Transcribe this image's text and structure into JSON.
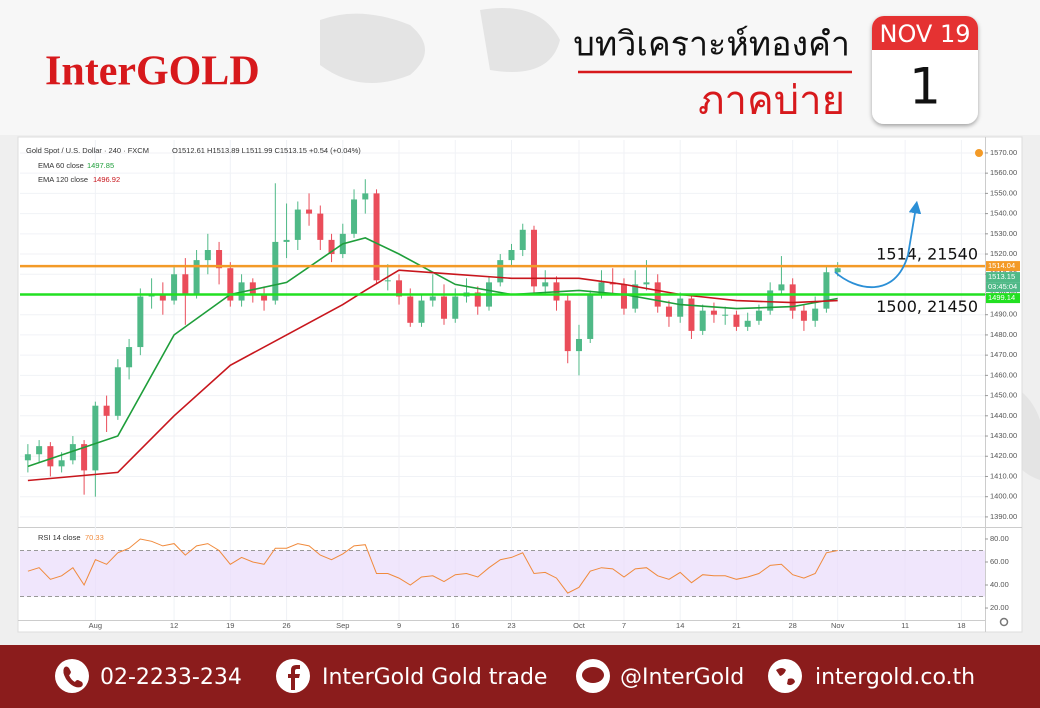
{
  "header": {
    "logo": "InterGOLD",
    "title": "บทวิเคราะห์ทองคำ",
    "subtitle": "ภาคบ่าย",
    "calendar": {
      "month": "NOV 19",
      "day": "1"
    }
  },
  "footer": {
    "phone": "02-2233-234",
    "facebook": "InterGold Gold trade",
    "line": "@InterGold",
    "website": "intergold.co.th"
  },
  "chart_data": [
    {
      "type": "candlestick",
      "title": "Gold Spot / U.S. Dollar · 240 · FXCM",
      "ohlc_label": "O1512.61 H1513.89 L1511.99 C1513.15 +0.54 (+0.04%)",
      "up_color": "#4fb987",
      "down_color": "#ea4d5a",
      "xlim": [
        -6.7,
        79.1
      ],
      "xticks": [
        {
          "value": 0,
          "label": "Aug"
        },
        {
          "value": 7,
          "label": "12"
        },
        {
          "value": 12,
          "label": "19"
        },
        {
          "value": 17,
          "label": "26"
        },
        {
          "value": 22,
          "label": "Sep"
        },
        {
          "value": 27,
          "label": "9"
        },
        {
          "value": 32,
          "label": "16"
        },
        {
          "value": 37,
          "label": "23"
        },
        {
          "value": 43,
          "label": "Oct"
        },
        {
          "value": 47,
          "label": "7"
        },
        {
          "value": 52,
          "label": "14"
        },
        {
          "value": 57,
          "label": "21"
        },
        {
          "value": 62,
          "label": "28"
        },
        {
          "value": 66,
          "label": "Nov"
        },
        {
          "value": 72,
          "label": "11"
        },
        {
          "value": 77,
          "label": "18"
        }
      ],
      "ylim": [
        1386,
        1576.4
      ],
      "yticks": [
        {
          "value": 1390,
          "label": "1390.00"
        },
        {
          "value": 1400,
          "label": "1400.00"
        },
        {
          "value": 1410,
          "label": "1410.00"
        },
        {
          "value": 1420,
          "label": "1420.00"
        },
        {
          "value": 1430,
          "label": "1430.00"
        },
        {
          "value": 1440,
          "label": "1440.00"
        },
        {
          "value": 1450,
          "label": "1450.00"
        },
        {
          "value": 1460,
          "label": "1460.00"
        },
        {
          "value": 1470,
          "label": "1470.00"
        },
        {
          "value": 1480,
          "label": "1480.00"
        },
        {
          "value": 1490,
          "label": "1490.00"
        },
        {
          "value": 1500,
          "label": "1500.00"
        },
        {
          "value": 1510,
          "label": "1510.00"
        },
        {
          "value": 1520,
          "label": "1520.00"
        },
        {
          "value": 1530,
          "label": "1530.00"
        },
        {
          "value": 1540,
          "label": "1540.00"
        },
        {
          "value": 1550,
          "label": "1550.00"
        },
        {
          "value": 1560,
          "label": "1560.00"
        },
        {
          "value": 1570,
          "label": "1570.00"
        }
      ],
      "grid": true,
      "x": [
        -6,
        -5,
        -4,
        -3,
        -2,
        -1,
        0,
        1,
        2,
        3,
        4,
        5,
        6,
        7,
        8,
        9,
        10,
        11,
        12,
        13,
        14,
        15,
        16,
        17,
        18,
        19,
        20,
        21,
        22,
        23,
        24,
        25,
        26,
        27,
        28,
        29,
        30,
        31,
        32,
        33,
        34,
        35,
        36,
        37,
        38,
        39,
        40,
        41,
        42,
        43,
        44,
        45,
        46,
        47,
        48,
        49,
        50,
        51,
        52,
        53,
        54,
        55,
        56,
        57,
        58,
        59,
        60,
        61,
        62,
        63,
        64,
        65,
        66
      ],
      "open": [
        1418,
        1421,
        1425,
        1415,
        1418,
        1426,
        1413,
        1445,
        1440,
        1464,
        1474,
        1499,
        1500,
        1497,
        1510,
        1500,
        1517,
        1522,
        1513,
        1497,
        1506,
        1500,
        1497,
        1526,
        1527,
        1542,
        1540,
        1527,
        1520,
        1530,
        1547,
        1550,
        1507,
        1507,
        1499,
        1486,
        1497,
        1499,
        1488,
        1499,
        1501,
        1494,
        1506,
        1517,
        1522,
        1532,
        1504,
        1506,
        1497,
        1472,
        1478,
        1500,
        1506,
        1505,
        1493,
        1505,
        1506,
        1494,
        1489,
        1498,
        1482,
        1492,
        1490,
        1490,
        1484,
        1487,
        1492,
        1502,
        1505,
        1492,
        1487,
        1493,
        1511
      ],
      "high": [
        1426,
        1428,
        1427,
        1422,
        1430,
        1428,
        1447,
        1450,
        1468,
        1478,
        1503,
        1508,
        1506,
        1514,
        1518,
        1522,
        1530,
        1526,
        1516,
        1510,
        1508,
        1504,
        1555,
        1545,
        1546,
        1550,
        1544,
        1530,
        1535,
        1552,
        1557,
        1552,
        1515,
        1510,
        1503,
        1500,
        1510,
        1505,
        1503,
        1508,
        1504,
        1509,
        1520,
        1525,
        1535,
        1534,
        1512,
        1509,
        1500,
        1485,
        1502,
        1512,
        1513,
        1508,
        1512,
        1517,
        1510,
        1497,
        1501,
        1500,
        1495,
        1496,
        1494,
        1492,
        1491,
        1495,
        1506,
        1519,
        1508,
        1495,
        1499,
        1514,
        1516
      ],
      "low": [
        1412,
        1417,
        1410,
        1412,
        1416,
        1401,
        1400,
        1432,
        1438,
        1458,
        1470,
        1493,
        1490,
        1495,
        1485,
        1498,
        1510,
        1505,
        1494,
        1494,
        1496,
        1492,
        1495,
        1518,
        1522,
        1534,
        1522,
        1516,
        1518,
        1528,
        1540,
        1505,
        1502,
        1495,
        1484,
        1484,
        1494,
        1485,
        1486,
        1496,
        1490,
        1492,
        1504,
        1514,
        1519,
        1501,
        1500,
        1492,
        1466,
        1460,
        1476,
        1498,
        1500,
        1490,
        1491,
        1502,
        1491,
        1484,
        1486,
        1478,
        1480,
        1486,
        1485,
        1482,
        1482,
        1485,
        1490,
        1500,
        1488,
        1482,
        1484,
        1491,
        1509
      ],
      "close": [
        1421,
        1425,
        1415,
        1418,
        1426,
        1413,
        1445,
        1440,
        1464,
        1474,
        1499,
        1500,
        1497,
        1510,
        1500,
        1517,
        1522,
        1513,
        1497,
        1506,
        1500,
        1497,
        1526,
        1527,
        1542,
        1540,
        1527,
        1520,
        1530,
        1547,
        1550,
        1507,
        1507,
        1499,
        1486,
        1497,
        1499,
        1488,
        1499,
        1501,
        1494,
        1506,
        1517,
        1522,
        1532,
        1504,
        1506,
        1497,
        1472,
        1478,
        1500,
        1506,
        1505,
        1493,
        1505,
        1506,
        1494,
        1489,
        1498,
        1482,
        1492,
        1490,
        1490,
        1484,
        1487,
        1492,
        1502,
        1505,
        1492,
        1487,
        1493,
        1511,
        1513
      ],
      "series": [
        {
          "name": "EMA 60 close",
          "last_value": 1497.85,
          "color": "#1e9e3a",
          "x": [
            -6,
            2,
            7,
            12,
            17,
            22,
            24,
            27,
            32,
            37,
            43,
            47,
            52,
            57,
            62,
            66
          ],
          "values": [
            1415,
            1430,
            1480,
            1500,
            1506,
            1525,
            1528,
            1520,
            1505,
            1500,
            1502,
            1500,
            1495,
            1493,
            1494,
            1498
          ]
        },
        {
          "name": "EMA 120 close",
          "last_value": 1496.92,
          "color": "#c8161d",
          "x": [
            -6,
            2,
            7,
            12,
            17,
            22,
            24,
            27,
            32,
            37,
            43,
            47,
            52,
            57,
            62,
            66
          ],
          "values": [
            1408,
            1412,
            1440,
            1465,
            1480,
            1495,
            1502,
            1512,
            1510,
            1508,
            1508,
            1505,
            1500,
            1497,
            1496,
            1497
          ]
        }
      ],
      "levels": [
        {
          "value": 1514,
          "label": "1514, 21540",
          "color": "#f39a27"
        },
        {
          "value": 1500,
          "label": "1500, 21450",
          "color": "#22e022"
        }
      ],
      "price_tags": [
        {
          "value": 1514.04,
          "color": "#f39a27"
        },
        {
          "value": 1513.15,
          "color": "#4fb987"
        },
        {
          "value": 1499.14,
          "color": "#22e022"
        }
      ],
      "countdown": "03:45:04"
    },
    {
      "type": "line",
      "title": "RSI 14 close",
      "last_value": 70.33,
      "xlim": [
        -6.7,
        79.1
      ],
      "ylim": [
        9.6,
        87.8
      ],
      "yticks": [
        {
          "value": 20,
          "label": "20.00"
        },
        {
          "value": 40,
          "label": "40.00"
        },
        {
          "value": 60,
          "label": "60.00"
        },
        {
          "value": 80,
          "label": "80.00"
        }
      ],
      "band": [
        30,
        70
      ],
      "band_color": "#e9dcfb",
      "color": "#f08a3c",
      "x": [
        -6,
        -5,
        -4,
        -3,
        -2,
        -1,
        0,
        1,
        2,
        3,
        4,
        5,
        6,
        7,
        8,
        9,
        10,
        11,
        12,
        13,
        14,
        15,
        16,
        17,
        18,
        19,
        20,
        21,
        22,
        23,
        24,
        25,
        26,
        27,
        28,
        29,
        30,
        31,
        32,
        33,
        34,
        35,
        36,
        37,
        38,
        39,
        40,
        41,
        42,
        43,
        44,
        45,
        46,
        47,
        48,
        49,
        50,
        51,
        52,
        53,
        54,
        55,
        56,
        57,
        58,
        59,
        60,
        61,
        62,
        63,
        64,
        65,
        66
      ],
      "values": [
        52,
        55,
        45,
        48,
        55,
        40,
        62,
        58,
        68,
        72,
        80,
        78,
        74,
        76,
        66,
        74,
        76,
        70,
        58,
        64,
        60,
        58,
        72,
        72,
        76,
        74,
        66,
        62,
        67,
        74,
        75,
        50,
        50,
        46,
        40,
        47,
        48,
        43,
        49,
        50,
        47,
        55,
        62,
        64,
        68,
        50,
        51,
        46,
        33,
        38,
        52,
        55,
        54,
        47,
        54,
        55,
        48,
        45,
        51,
        42,
        49,
        48,
        48,
        45,
        47,
        50,
        57,
        58,
        49,
        46,
        50,
        68,
        70
      ]
    }
  ]
}
